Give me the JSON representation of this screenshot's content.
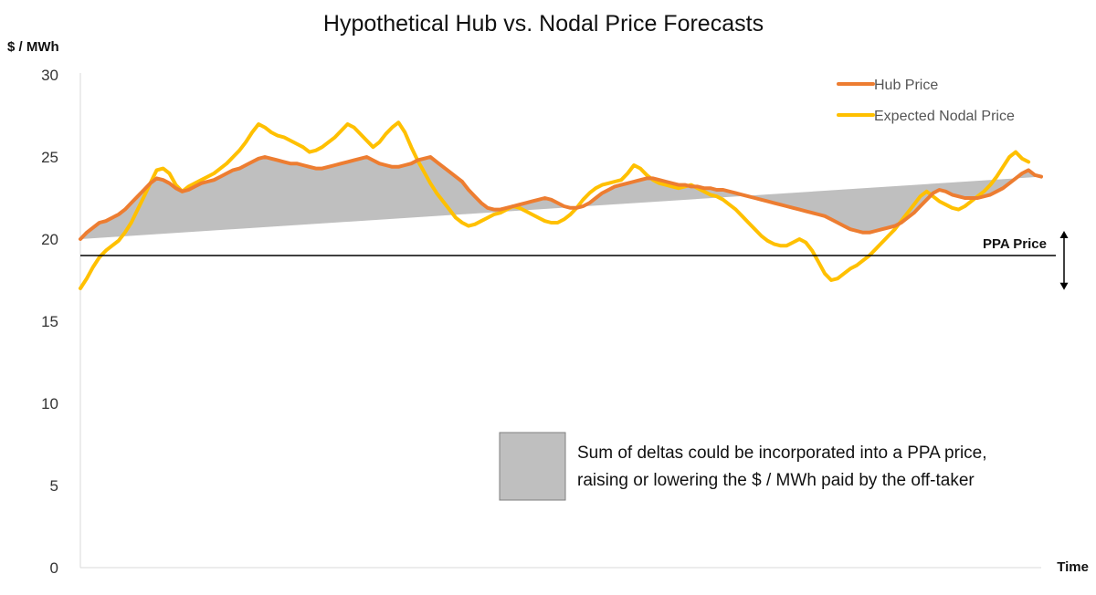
{
  "chart_data": {
    "type": "line",
    "title": "Hypothetical Hub vs. Nodal Price Forecasts",
    "ylabel": "$ / MWh",
    "xlabel": "Time",
    "ylim": [
      0,
      30
    ],
    "yticks": [
      0,
      5,
      10,
      15,
      20,
      25,
      30
    ],
    "grid": false,
    "legend_position": "top-right",
    "series": [
      {
        "name": "Hub Price",
        "color": "#ED7D31",
        "values": [
          20.0,
          20.4,
          20.7,
          21.0,
          21.1,
          21.3,
          21.5,
          21.8,
          22.2,
          22.6,
          23.0,
          23.4,
          23.7,
          23.6,
          23.4,
          23.1,
          22.9,
          23.0,
          23.2,
          23.4,
          23.5,
          23.6,
          23.8,
          24.0,
          24.2,
          24.3,
          24.5,
          24.7,
          24.9,
          25.0,
          24.9,
          24.8,
          24.7,
          24.6,
          24.6,
          24.5,
          24.4,
          24.3,
          24.3,
          24.4,
          24.5,
          24.6,
          24.7,
          24.8,
          24.9,
          25.0,
          24.8,
          24.6,
          24.5,
          24.4,
          24.4,
          24.5,
          24.6,
          24.8,
          24.9,
          25.0,
          24.7,
          24.4,
          24.1,
          23.8,
          23.5,
          23.0,
          22.6,
          22.2,
          21.9,
          21.8,
          21.8,
          21.9,
          22.0,
          22.1,
          22.2,
          22.3,
          22.4,
          22.5,
          22.4,
          22.2,
          22.0,
          21.9,
          21.9,
          22.0,
          22.2,
          22.5,
          22.8,
          23.0,
          23.2,
          23.3,
          23.4,
          23.5,
          23.6,
          23.7,
          23.7,
          23.6,
          23.5,
          23.4,
          23.3,
          23.3,
          23.2,
          23.2,
          23.1,
          23.1,
          23.0,
          23.0,
          22.9,
          22.8,
          22.7,
          22.6,
          22.5,
          22.4,
          22.3,
          22.2,
          22.1,
          22.0,
          21.9,
          21.8,
          21.7,
          21.6,
          21.5,
          21.4,
          21.2,
          21.0,
          20.8,
          20.6,
          20.5,
          20.4,
          20.4,
          20.5,
          20.6,
          20.7,
          20.8,
          21.0,
          21.3,
          21.6,
          22.0,
          22.4,
          22.8,
          23.0,
          22.9,
          22.7,
          22.6,
          22.5,
          22.5,
          22.5,
          22.6,
          22.7,
          22.9,
          23.1,
          23.4,
          23.7,
          24.0,
          24.2,
          23.9,
          23.8
        ]
      },
      {
        "name": "Expected Nodal Price",
        "color": "#FFC000",
        "values": [
          17.0,
          17.6,
          18.3,
          18.9,
          19.3,
          19.6,
          19.9,
          20.4,
          21.0,
          21.8,
          22.6,
          23.4,
          24.2,
          24.3,
          24.0,
          23.3,
          22.9,
          23.2,
          23.4,
          23.6,
          23.8,
          24.0,
          24.3,
          24.6,
          25.0,
          25.4,
          25.9,
          26.5,
          27.0,
          26.8,
          26.5,
          26.3,
          26.2,
          26.0,
          25.8,
          25.6,
          25.3,
          25.4,
          25.6,
          25.9,
          26.2,
          26.6,
          27.0,
          26.8,
          26.4,
          26.0,
          25.6,
          25.9,
          26.4,
          26.8,
          27.1,
          26.5,
          25.6,
          24.8,
          24.1,
          23.4,
          22.8,
          22.3,
          21.8,
          21.3,
          21.0,
          20.8,
          20.9,
          21.1,
          21.3,
          21.5,
          21.6,
          21.8,
          22.0,
          21.9,
          21.7,
          21.5,
          21.3,
          21.1,
          21.0,
          21.0,
          21.2,
          21.5,
          21.9,
          22.4,
          22.8,
          23.1,
          23.3,
          23.4,
          23.5,
          23.6,
          24.0,
          24.5,
          24.3,
          23.9,
          23.6,
          23.4,
          23.3,
          23.2,
          23.1,
          23.2,
          23.3,
          23.1,
          22.9,
          22.7,
          22.6,
          22.4,
          22.1,
          21.8,
          21.4,
          21.0,
          20.6,
          20.2,
          19.9,
          19.7,
          19.6,
          19.6,
          19.8,
          20.0,
          19.8,
          19.3,
          18.6,
          17.9,
          17.5,
          17.6,
          17.9,
          18.2,
          18.4,
          18.7,
          19.0,
          19.4,
          19.8,
          20.2,
          20.6,
          21.1,
          21.6,
          22.1,
          22.6,
          22.9,
          22.6,
          22.3,
          22.1,
          21.9,
          21.8,
          22.0,
          22.3,
          22.6,
          22.9,
          23.3,
          23.8,
          24.4,
          25.0,
          25.3,
          24.9,
          24.7
        ]
      }
    ],
    "reference_lines": [
      {
        "label": "PPA Price",
        "value": 19.0
      }
    ],
    "annotation": {
      "text_line1": "Sum of deltas could be incorporated into a PPA price,",
      "text_line2": "raising or lowering the $ / MWh paid by the off-taker"
    },
    "fill_color": "#BFBFBF"
  }
}
